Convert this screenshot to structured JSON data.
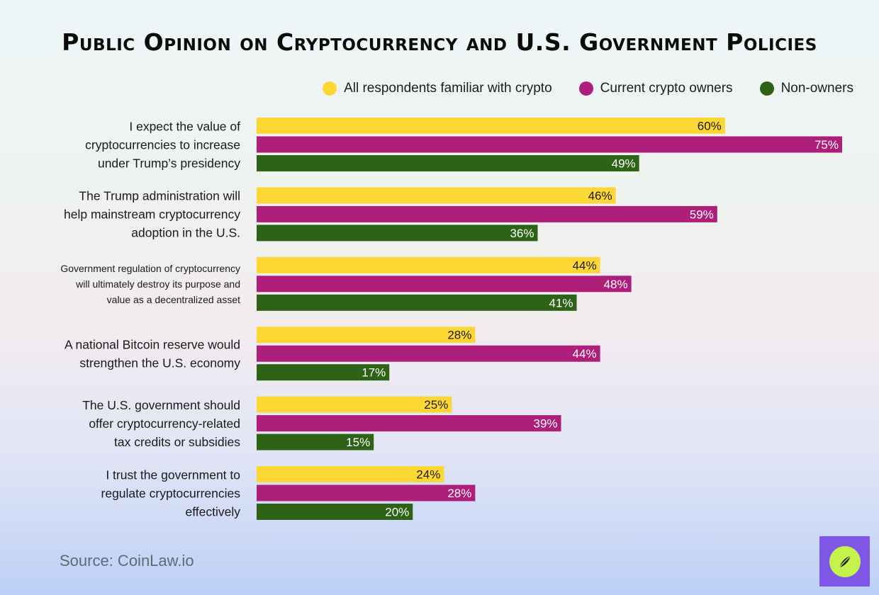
{
  "colors": {
    "series": [
      "#fdd835",
      "#ad1f7a",
      "#2e6317"
    ],
    "value_label_on_light": "#1a1a1a",
    "value_label_on_dark": "#ffffff",
    "category_label": "#1a1a1a"
  },
  "icons": {
    "logo": "compass-logo-icon"
  },
  "source_text": "Source: CoinLaw.io",
  "chart_data": {
    "type": "bar",
    "orientation": "horizontal",
    "title": "Public Opinion on Cryptocurrency and U.S. Government Policies",
    "value_suffix": "%",
    "xlim": [
      0,
      75
    ],
    "grid": false,
    "legend_position": "top-right",
    "categories": [
      [
        "I expect the value of",
        "cryptocurrencies to increase",
        "under Trump’s presidency"
      ],
      [
        "The Trump administration will",
        "help mainstream cryptocurrency",
        "adoption in the U.S."
      ],
      [
        "Government regulation of cryptocurrency",
        "will ultimately destroy its purpose and",
        "value as a decentralized asset"
      ],
      [
        "A national Bitcoin reserve would",
        "strengthen the U.S. economy"
      ],
      [
        "The U.S. government should",
        "offer cryptocurrency-related",
        "tax credits or subsidies"
      ],
      [
        "I trust the government to",
        "regulate cryptocurrencies",
        "effectively"
      ]
    ],
    "series": [
      {
        "name": "All respondents familiar with crypto",
        "values": [
          60,
          46,
          44,
          28,
          25,
          24
        ]
      },
      {
        "name": "Current crypto owners",
        "values": [
          75,
          59,
          48,
          44,
          39,
          28
        ]
      },
      {
        "name": "Non-owners",
        "values": [
          49,
          36,
          41,
          17,
          15,
          20
        ]
      }
    ]
  }
}
